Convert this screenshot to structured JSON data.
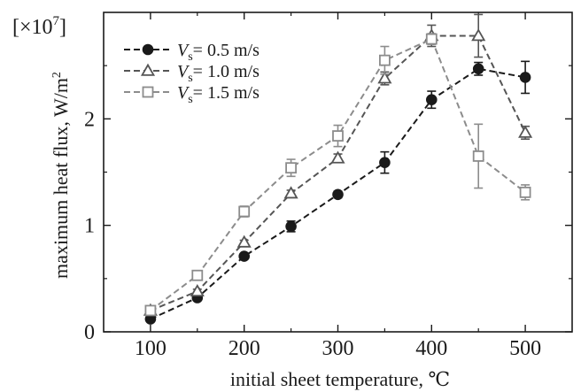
{
  "chart_data": {
    "type": "line",
    "xlabel": "initial sheet temperature, ℃",
    "ylabel_main": "maximum heat flux,  W/m",
    "ylabel_sup": "2",
    "multiplier": {
      "prefix": "[×10",
      "exp": "7",
      "suffix": "]"
    },
    "xlim": [
      50,
      550
    ],
    "ylim": [
      0,
      3
    ],
    "xticks": [
      100,
      200,
      300,
      400,
      500
    ],
    "xtick_labels": [
      "100",
      "200",
      "300",
      "400",
      "500"
    ],
    "yticks": [
      0,
      1,
      2
    ],
    "ytick_labels": [
      "0",
      "1",
      "2"
    ],
    "grid": false,
    "legend_position": "top-left",
    "x": [
      100,
      150,
      200,
      250,
      300,
      350,
      400,
      450,
      500
    ],
    "series": [
      {
        "legend_symbol": "V",
        "legend_sub": "s",
        "legend_rest": "= 0.5 m/s",
        "marker": "circle",
        "color": "#1a1a1a",
        "fill": "#1a1a1a",
        "values": [
          0.12,
          0.32,
          0.71,
          0.99,
          1.29,
          1.59,
          2.18,
          2.47,
          2.39
        ],
        "errors": [
          0.02,
          0.02,
          0.02,
          0.05,
          0.03,
          0.1,
          0.08,
          0.06,
          0.15
        ]
      },
      {
        "legend_symbol": "V",
        "legend_sub": "s",
        "legend_rest": "= 1.0 m/s",
        "marker": "triangle",
        "color": "#555555",
        "fill": "#ffffff",
        "values": [
          0.2,
          0.38,
          0.84,
          1.3,
          1.63,
          2.38,
          2.78,
          2.78,
          1.87
        ],
        "errors": [
          0.02,
          0.02,
          0.02,
          0.03,
          0.04,
          0.06,
          0.1,
          0.2,
          0.06
        ]
      },
      {
        "legend_symbol": "V",
        "legend_sub": "s",
        "legend_rest": "= 1.5 m/s",
        "marker": "square",
        "color": "#8c8c8c",
        "fill": "#ffffff",
        "values": [
          0.2,
          0.53,
          1.13,
          1.54,
          1.84,
          2.55,
          2.75,
          1.65,
          1.31
        ],
        "errors": [
          0.02,
          0.03,
          0.05,
          0.08,
          0.1,
          0.13,
          0.05,
          0.3,
          0.07
        ]
      }
    ]
  }
}
